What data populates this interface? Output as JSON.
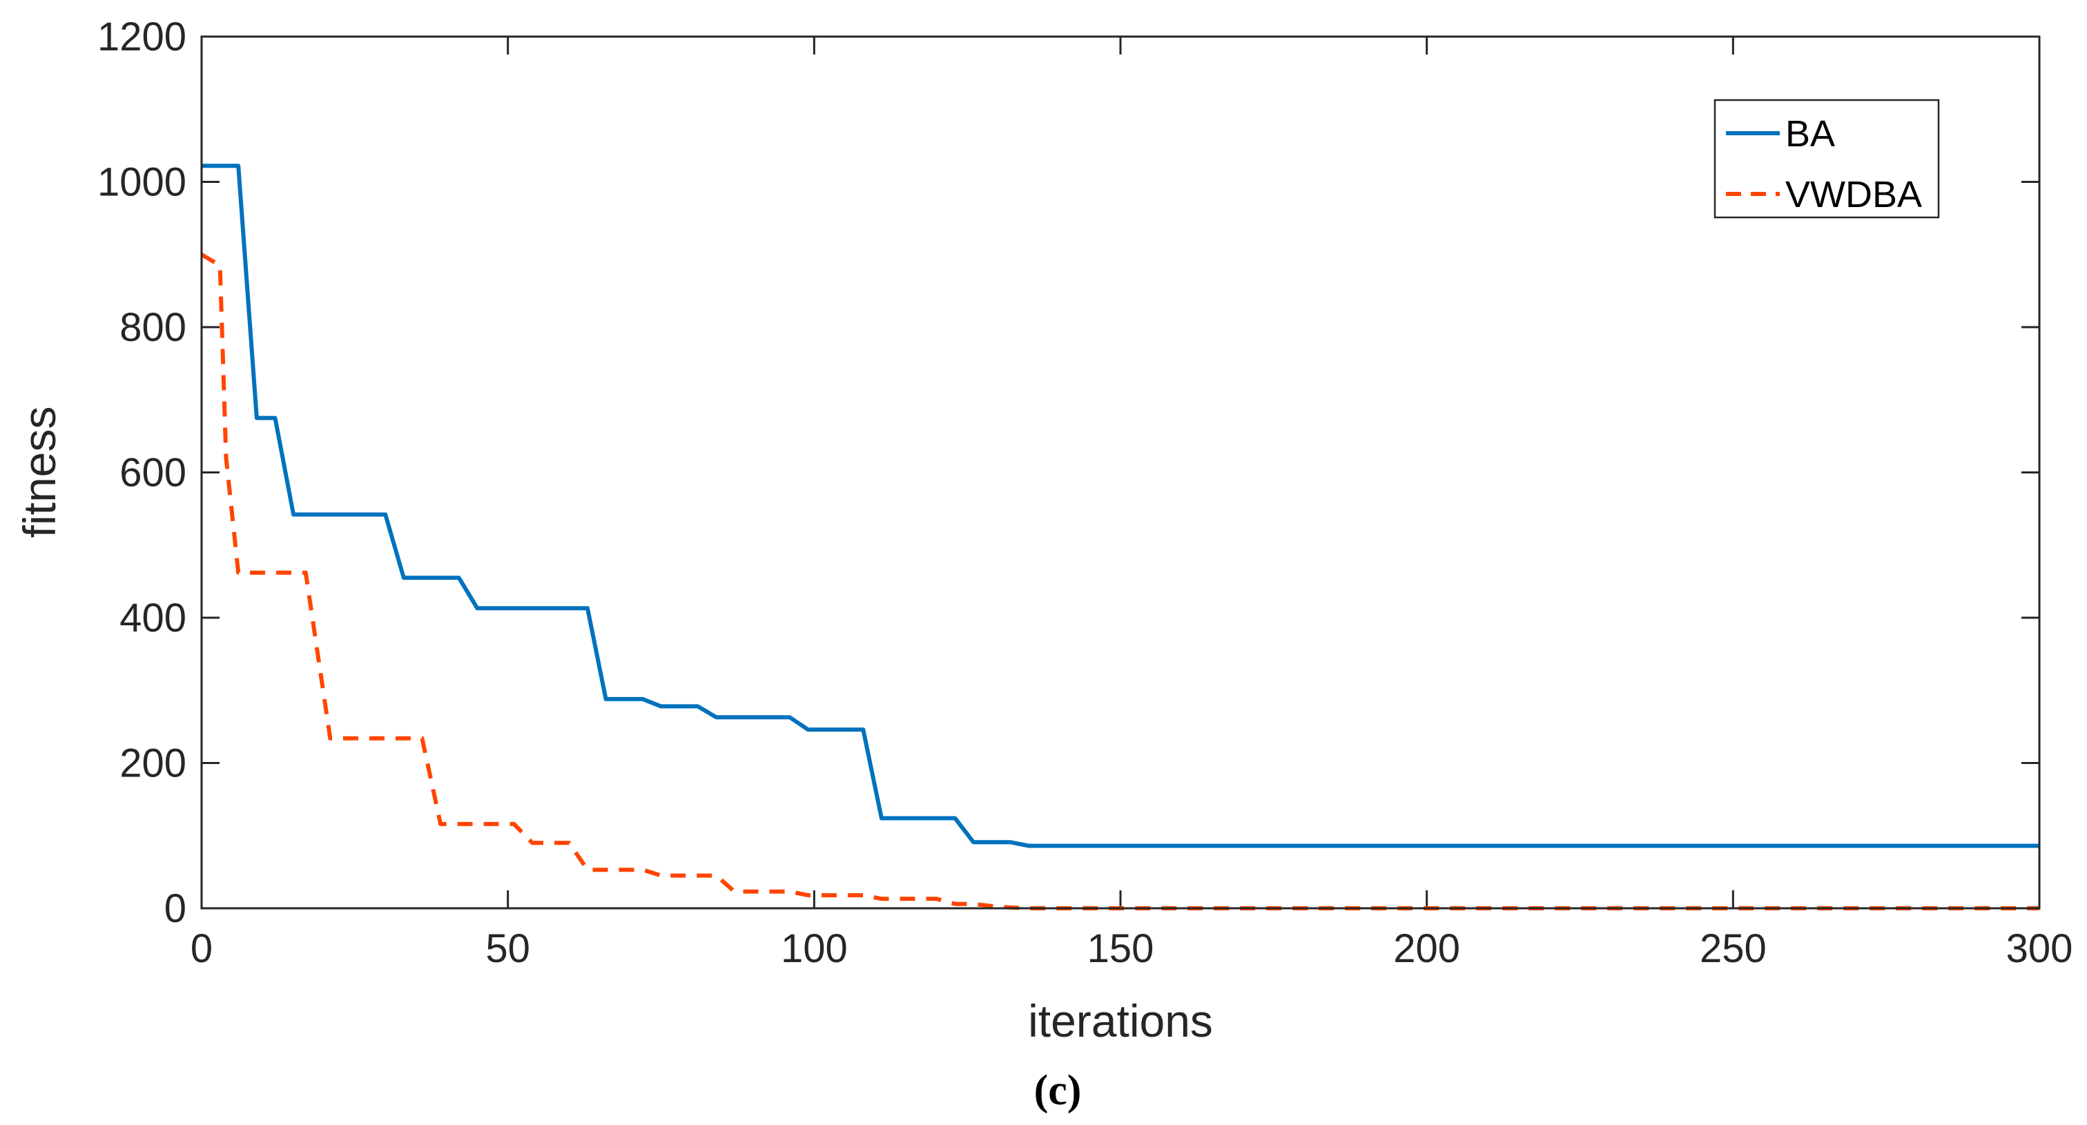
{
  "chart_data": {
    "type": "line",
    "title": "",
    "xlabel": "iterations",
    "ylabel": "fitness",
    "panel_label": "(c)",
    "xlim": [
      0,
      300
    ],
    "ylim": [
      0,
      1200
    ],
    "xticks": [
      "0",
      "50",
      "100",
      "150",
      "200",
      "250",
      "300"
    ],
    "yticks": [
      "0",
      "200",
      "400",
      "600",
      "800",
      "1000",
      "1200"
    ],
    "grid": false,
    "legend_position": "top-right",
    "series": [
      {
        "name": "BA",
        "color": "#0072BD",
        "style": "solid",
        "x": [
          0,
          6,
          9,
          12,
          15,
          30,
          33,
          42,
          45,
          63,
          66,
          72,
          75,
          81,
          84,
          96,
          99,
          108,
          111,
          123,
          126,
          132,
          135,
          300
        ],
        "y": [
          1022,
          1022,
          675,
          675,
          542,
          542,
          455,
          455,
          413,
          413,
          288,
          288,
          278,
          278,
          263,
          263,
          246,
          246,
          124,
          124,
          91,
          91,
          86,
          86
        ]
      },
      {
        "name": "VWDBA",
        "color": "#FF4500",
        "style": "dashed",
        "x": [
          0,
          2,
          3,
          4,
          6,
          17,
          21,
          36,
          39,
          51,
          54,
          60,
          63,
          72,
          75,
          84,
          87,
          96,
          99,
          108,
          111,
          120,
          123,
          126,
          129,
          132,
          135,
          300
        ],
        "y": [
          900,
          890,
          885,
          620,
          462,
          462,
          234,
          234,
          116,
          116,
          90,
          90,
          53,
          53,
          45,
          45,
          23,
          23,
          18,
          18,
          13,
          13,
          6,
          6,
          3,
          1,
          0,
          0
        ]
      }
    ]
  }
}
